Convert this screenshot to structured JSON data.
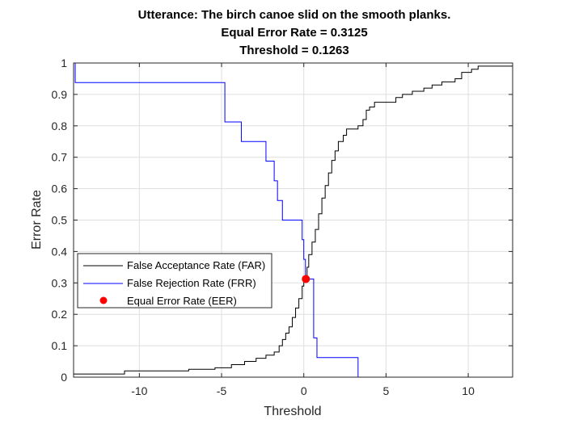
{
  "chart_data": {
    "type": "line",
    "title_lines": [
      "Utterance: The birch canoe slid on the smooth planks.",
      "Equal Error Rate = 0.3125",
      "Threshold = 0.1263"
    ],
    "xlabel": "Threshold",
    "ylabel": "Error Rate",
    "xlim": [
      -14,
      12.7
    ],
    "ylim": [
      0,
      1
    ],
    "xticks": [
      -10,
      -5,
      0,
      5,
      10
    ],
    "yticks": [
      0,
      0.1,
      0.2,
      0.3,
      0.4,
      0.5,
      0.6,
      0.7,
      0.8,
      0.9,
      1
    ],
    "xtick_labels": [
      "-10",
      "-5",
      "0",
      "5",
      "10"
    ],
    "ytick_labels": [
      "0",
      "0.1",
      "0.2",
      "0.3",
      "0.4",
      "0.5",
      "0.6",
      "0.7",
      "0.8",
      "0.9",
      "1"
    ],
    "grid": true,
    "legend_position": "lower-left",
    "series": [
      {
        "name": "False Acceptance Rate (FAR)",
        "color": "#000000",
        "style": "step",
        "points": [
          [
            -14,
            0.01
          ],
          [
            -10.9,
            0.01
          ],
          [
            -10.9,
            0.02
          ],
          [
            -7.0,
            0.02
          ],
          [
            -7.0,
            0.025
          ],
          [
            -5.4,
            0.025
          ],
          [
            -5.4,
            0.03
          ],
          [
            -4.4,
            0.03
          ],
          [
            -4.4,
            0.04
          ],
          [
            -3.6,
            0.04
          ],
          [
            -3.6,
            0.05
          ],
          [
            -2.9,
            0.05
          ],
          [
            -2.9,
            0.06
          ],
          [
            -2.3,
            0.06
          ],
          [
            -2.3,
            0.07
          ],
          [
            -1.8,
            0.07
          ],
          [
            -1.8,
            0.08
          ],
          [
            -1.5,
            0.08
          ],
          [
            -1.5,
            0.1
          ],
          [
            -1.3,
            0.1
          ],
          [
            -1.3,
            0.12
          ],
          [
            -1.1,
            0.12
          ],
          [
            -1.1,
            0.14
          ],
          [
            -0.9,
            0.14
          ],
          [
            -0.9,
            0.16
          ],
          [
            -0.7,
            0.16
          ],
          [
            -0.7,
            0.19
          ],
          [
            -0.5,
            0.19
          ],
          [
            -0.5,
            0.22
          ],
          [
            -0.3,
            0.22
          ],
          [
            -0.3,
            0.25
          ],
          [
            -0.1,
            0.25
          ],
          [
            -0.1,
            0.29
          ],
          [
            0.0,
            0.29
          ],
          [
            0.0,
            0.3125
          ],
          [
            0.2,
            0.3125
          ],
          [
            0.2,
            0.35
          ],
          [
            0.3,
            0.35
          ],
          [
            0.3,
            0.39
          ],
          [
            0.5,
            0.39
          ],
          [
            0.5,
            0.43
          ],
          [
            0.7,
            0.43
          ],
          [
            0.7,
            0.47
          ],
          [
            0.9,
            0.47
          ],
          [
            0.9,
            0.52
          ],
          [
            1.1,
            0.52
          ],
          [
            1.1,
            0.57
          ],
          [
            1.3,
            0.57
          ],
          [
            1.3,
            0.61
          ],
          [
            1.5,
            0.61
          ],
          [
            1.5,
            0.65
          ],
          [
            1.7,
            0.65
          ],
          [
            1.7,
            0.69
          ],
          [
            1.9,
            0.69
          ],
          [
            1.9,
            0.72
          ],
          [
            2.1,
            0.72
          ],
          [
            2.1,
            0.75
          ],
          [
            2.4,
            0.75
          ],
          [
            2.4,
            0.77
          ],
          [
            2.6,
            0.77
          ],
          [
            2.6,
            0.79
          ],
          [
            3.3,
            0.79
          ],
          [
            3.3,
            0.8
          ],
          [
            3.6,
            0.8
          ],
          [
            3.6,
            0.82
          ],
          [
            3.8,
            0.82
          ],
          [
            3.8,
            0.85
          ],
          [
            4.0,
            0.85
          ],
          [
            4.0,
            0.86
          ],
          [
            4.3,
            0.86
          ],
          [
            4.3,
            0.875
          ],
          [
            5.6,
            0.875
          ],
          [
            5.6,
            0.89
          ],
          [
            6.0,
            0.89
          ],
          [
            6.0,
            0.9
          ],
          [
            6.6,
            0.9
          ],
          [
            6.6,
            0.91
          ],
          [
            7.3,
            0.91
          ],
          [
            7.3,
            0.92
          ],
          [
            7.8,
            0.92
          ],
          [
            7.8,
            0.93
          ],
          [
            8.4,
            0.93
          ],
          [
            8.4,
            0.94
          ],
          [
            9.2,
            0.94
          ],
          [
            9.2,
            0.95
          ],
          [
            9.6,
            0.95
          ],
          [
            9.6,
            0.97
          ],
          [
            10.2,
            0.97
          ],
          [
            10.2,
            0.98
          ],
          [
            10.6,
            0.98
          ],
          [
            10.6,
            0.99
          ],
          [
            12.7,
            0.99
          ]
        ]
      },
      {
        "name": "False Rejection Rate (FRR)",
        "color": "#0000ff",
        "style": "step",
        "points": [
          [
            -14,
            1.0
          ],
          [
            -13.9,
            1.0
          ],
          [
            -13.9,
            0.9375
          ],
          [
            -4.8,
            0.9375
          ],
          [
            -4.8,
            0.8125
          ],
          [
            -3.8,
            0.8125
          ],
          [
            -3.8,
            0.75
          ],
          [
            -2.3,
            0.75
          ],
          [
            -2.3,
            0.6875
          ],
          [
            -1.8,
            0.6875
          ],
          [
            -1.8,
            0.625
          ],
          [
            -1.6,
            0.625
          ],
          [
            -1.6,
            0.5625
          ],
          [
            -1.3,
            0.5625
          ],
          [
            -1.3,
            0.5
          ],
          [
            -0.1,
            0.5
          ],
          [
            -0.1,
            0.4375
          ],
          [
            0.0,
            0.4375
          ],
          [
            0.0,
            0.375
          ],
          [
            0.1,
            0.375
          ],
          [
            0.1,
            0.3125
          ],
          [
            0.6,
            0.3125
          ],
          [
            0.6,
            0.125
          ],
          [
            0.8,
            0.125
          ],
          [
            0.8,
            0.0625
          ],
          [
            3.3,
            0.0625
          ],
          [
            3.3,
            0.0
          ],
          [
            12.7,
            0.0
          ]
        ]
      }
    ],
    "eer_point": {
      "name": "Equal Error Rate (EER)",
      "x": 0.1263,
      "y": 0.3125,
      "color": "#ff0000"
    }
  }
}
